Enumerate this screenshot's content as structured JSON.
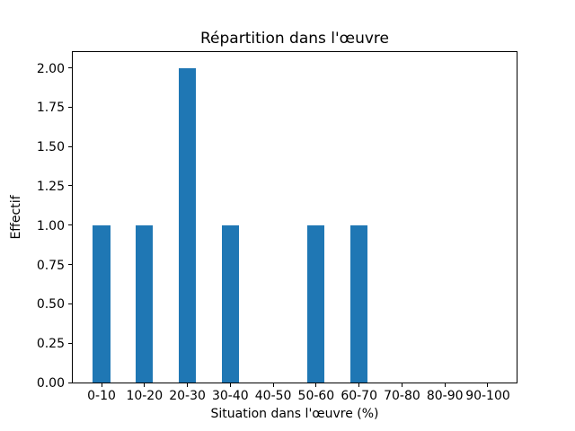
{
  "chart_data": {
    "type": "bar",
    "title": "Répartition dans l'œuvre",
    "xlabel": "Situation dans l'œuvre (%)",
    "ylabel": "Effectif",
    "categories": [
      "0-10",
      "10-20",
      "20-30",
      "30-40",
      "40-50",
      "50-60",
      "60-70",
      "70-80",
      "80-90",
      "90-100"
    ],
    "values": [
      1,
      1,
      2,
      1,
      0,
      1,
      1,
      0,
      0,
      0
    ],
    "ytick_values": [
      0,
      0.25,
      0.5,
      0.75,
      1,
      1.25,
      1.5,
      1.75,
      2
    ],
    "ytick_labels": [
      "0.00",
      "0.25",
      "0.50",
      "0.75",
      "1.00",
      "1.25",
      "1.50",
      "1.75",
      "2.00"
    ],
    "ylim": [
      0,
      2.1
    ],
    "xlim": [
      -0.67,
      9.67
    ],
    "bar_width": 0.4,
    "bar_color": "#1f77b4",
    "grid": false,
    "legend": null,
    "background_color": "#ffffff",
    "spine_color": "#000000"
  }
}
